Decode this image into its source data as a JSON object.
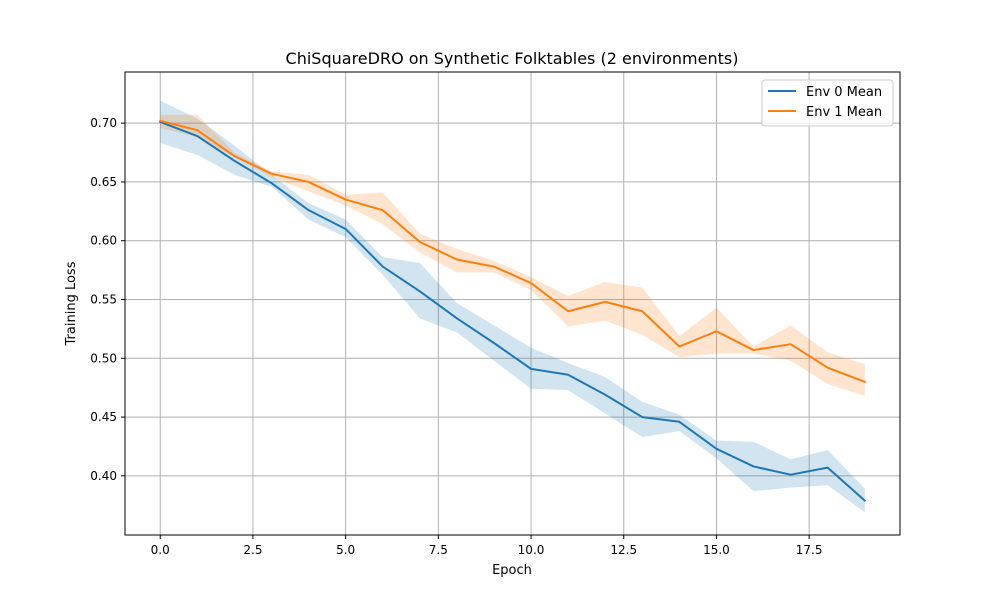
{
  "chart_data": {
    "type": "line",
    "title": "ChiSquareDRO on Synthetic Folktables (2 environments)",
    "xlabel": "Epoch",
    "ylabel": "Training Loss",
    "xlim": [
      -0.95,
      19.95
    ],
    "ylim": [
      0.3497,
      0.7435
    ],
    "grid": true,
    "legend_position": "top-right",
    "xticks": [
      0.0,
      2.5,
      5.0,
      7.5,
      10.0,
      12.5,
      15.0,
      17.5
    ],
    "xtick_labels": [
      "0.0",
      "2.5",
      "5.0",
      "7.5",
      "10.0",
      "12.5",
      "15.0",
      "17.5"
    ],
    "yticks": [
      0.4,
      0.45,
      0.5,
      0.55,
      0.6,
      0.65,
      0.7
    ],
    "ytick_labels": [
      "0.40",
      "0.45",
      "0.50",
      "0.55",
      "0.60",
      "0.65",
      "0.70"
    ],
    "x": [
      0,
      1,
      2,
      3,
      4,
      5,
      6,
      7,
      8,
      9,
      10,
      11,
      12,
      13,
      14,
      15,
      16,
      17,
      18,
      19
    ],
    "series": [
      {
        "name": "Env 0 Mean",
        "color": "#1f77b4",
        "values": [
          0.701,
          0.689,
          0.668,
          0.649,
          0.626,
          0.61,
          0.578,
          0.557,
          0.534,
          0.513,
          0.491,
          0.486,
          0.469,
          0.45,
          0.446,
          0.423,
          0.408,
          0.401,
          0.407,
          0.379
        ],
        "lower": [
          0.683,
          0.673,
          0.656,
          0.646,
          0.618,
          0.603,
          0.571,
          0.534,
          0.522,
          0.498,
          0.474,
          0.473,
          0.453,
          0.433,
          0.438,
          0.415,
          0.387,
          0.39,
          0.392,
          0.369
        ],
        "upper": [
          0.719,
          0.704,
          0.681,
          0.656,
          0.632,
          0.618,
          0.586,
          0.581,
          0.547,
          0.528,
          0.509,
          0.496,
          0.484,
          0.463,
          0.452,
          0.43,
          0.429,
          0.414,
          0.422,
          0.389
        ]
      },
      {
        "name": "Env 1 Mean",
        "color": "#ff7f0e",
        "values": [
          0.702,
          0.694,
          0.672,
          0.657,
          0.65,
          0.635,
          0.626,
          0.599,
          0.584,
          0.578,
          0.564,
          0.54,
          0.548,
          0.54,
          0.51,
          0.523,
          0.507,
          0.512,
          0.492,
          0.48
        ],
        "lower": [
          0.696,
          0.688,
          0.671,
          0.654,
          0.642,
          0.63,
          0.614,
          0.59,
          0.573,
          0.573,
          0.558,
          0.527,
          0.532,
          0.52,
          0.501,
          0.504,
          0.504,
          0.498,
          0.478,
          0.468
        ],
        "upper": [
          0.707,
          0.707,
          0.675,
          0.659,
          0.656,
          0.639,
          0.641,
          0.606,
          0.593,
          0.583,
          0.569,
          0.553,
          0.565,
          0.56,
          0.519,
          0.543,
          0.51,
          0.528,
          0.505,
          0.495
        ]
      }
    ]
  }
}
